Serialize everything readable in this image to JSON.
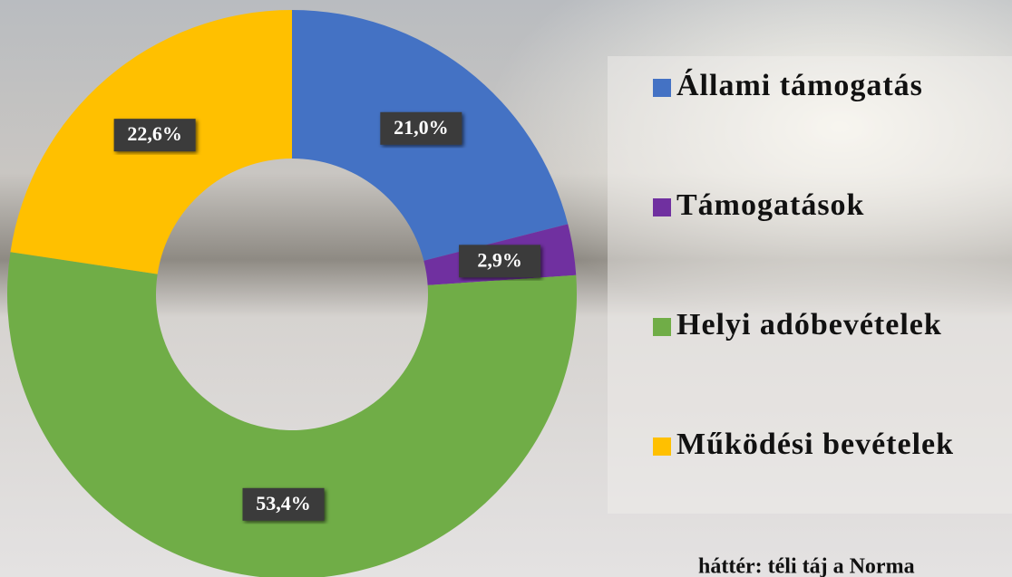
{
  "chart_data": {
    "type": "donut",
    "categories": [
      "Állami támogatás",
      "Támogatások",
      "Helyi adóbevételek",
      "Működési bevételek"
    ],
    "values": [
      21.0,
      2.9,
      53.4,
      22.6
    ],
    "value_labels": [
      "21,0%",
      "2,9%",
      "53,4%",
      "22,6%"
    ],
    "colors": [
      "#4472c4",
      "#7030a0",
      "#70ad47",
      "#ffc000"
    ],
    "legend": "right",
    "annotation": "háttér: téli táj a Norma"
  }
}
